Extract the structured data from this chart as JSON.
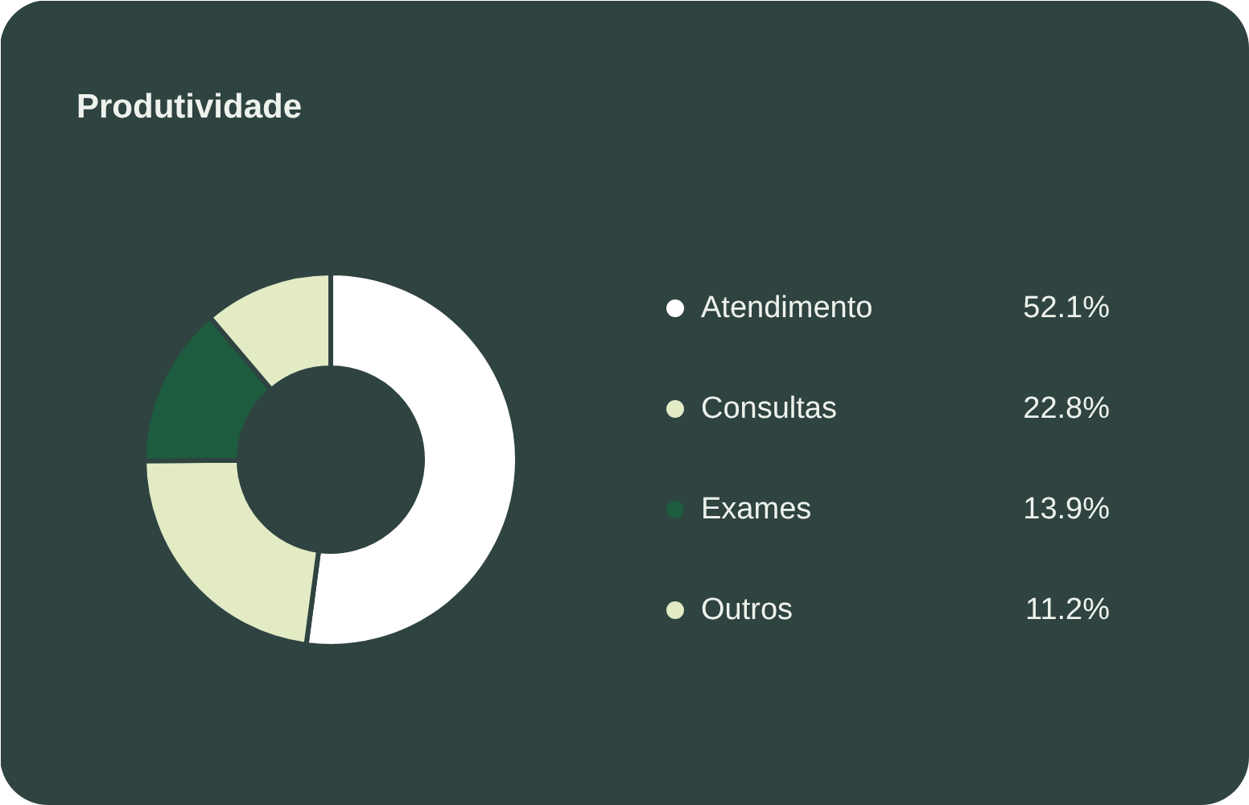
{
  "chart_data": {
    "type": "donut",
    "title": "Produtividade",
    "categories": [
      "Atendimento",
      "Consultas",
      "Exames",
      "Outros"
    ],
    "values": [
      52.1,
      22.8,
      13.9,
      11.2
    ],
    "colors": [
      "#ffffff",
      "#e2ebc4",
      "#1e5c3f",
      "#e2ebc4"
    ],
    "value_labels": [
      "52.1%",
      "22.8%",
      "13.9%",
      "11.2%"
    ],
    "legend": "right"
  }
}
